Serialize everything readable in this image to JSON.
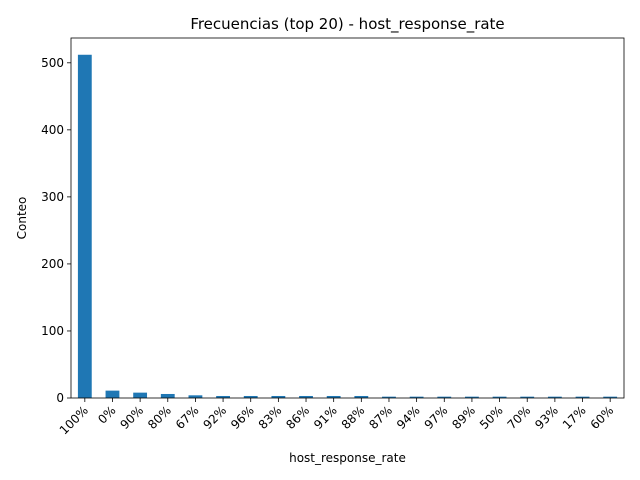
{
  "chart_data": {
    "type": "bar",
    "title": "Frecuencias (top 20) - host_response_rate",
    "xlabel": "host_response_rate",
    "ylabel": "Conteo",
    "categories": [
      "100%",
      "0%",
      "90%",
      "80%",
      "67%",
      "92%",
      "96%",
      "83%",
      "86%",
      "91%",
      "88%",
      "87%",
      "94%",
      "97%",
      "89%",
      "50%",
      "70%",
      "93%",
      "17%",
      "60%"
    ],
    "values": [
      512,
      11,
      8,
      6,
      4,
      3,
      3,
      3,
      3,
      3,
      3,
      2,
      2,
      2,
      2,
      2,
      2,
      2,
      2,
      2
    ],
    "ylim": [
      0,
      537
    ],
    "yticks": [
      0,
      100,
      200,
      300,
      400,
      500
    ],
    "bar_color": "#1f77b4",
    "grid": false,
    "legend": "none"
  }
}
